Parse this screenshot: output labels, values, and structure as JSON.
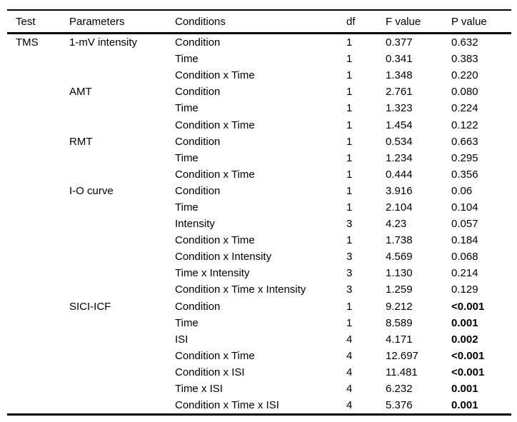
{
  "table": {
    "columns": [
      {
        "key": "test",
        "label": "Test"
      },
      {
        "key": "parameters",
        "label": "Parameters"
      },
      {
        "key": "conditions",
        "label": "Conditions"
      },
      {
        "key": "df",
        "label": "df"
      },
      {
        "key": "f",
        "label": "F value"
      },
      {
        "key": "p",
        "label": "P value"
      }
    ],
    "rows": [
      {
        "test": "TMS",
        "parameters": "1-mV intensity",
        "conditions": "Condition",
        "df": "1",
        "f": "0.377",
        "p": "0.632",
        "p_bold": false
      },
      {
        "test": "",
        "parameters": "",
        "conditions": "Time",
        "df": "1",
        "f": "0.341",
        "p": "0.383",
        "p_bold": false
      },
      {
        "test": "",
        "parameters": "",
        "conditions": "Condition x Time",
        "df": "1",
        "f": "1.348",
        "p": "0.220",
        "p_bold": false
      },
      {
        "test": "",
        "parameters": "AMT",
        "conditions": "Condition",
        "df": "1",
        "f": "2.761",
        "p": "0.080",
        "p_bold": false
      },
      {
        "test": "",
        "parameters": "",
        "conditions": "Time",
        "df": "1",
        "f": "1.323",
        "p": "0.224",
        "p_bold": false
      },
      {
        "test": "",
        "parameters": "",
        "conditions": "Condition x Time",
        "df": "1",
        "f": "1.454",
        "p": "0.122",
        "p_bold": false
      },
      {
        "test": "",
        "parameters": "RMT",
        "conditions": "Condition",
        "df": "1",
        "f": "0.534",
        "p": "0.663",
        "p_bold": false
      },
      {
        "test": "",
        "parameters": "",
        "conditions": "Time",
        "df": "1",
        "f": "1.234",
        "p": "0.295",
        "p_bold": false
      },
      {
        "test": "",
        "parameters": "",
        "conditions": "Condition x Time",
        "df": "1",
        "f": "0.444",
        "p": "0.356",
        "p_bold": false
      },
      {
        "test": "",
        "parameters": "I-O curve",
        "conditions": "Condition",
        "df": "1",
        "f": "3.916",
        "p": "0.06",
        "p_bold": false
      },
      {
        "test": "",
        "parameters": "",
        "conditions": "Time",
        "df": "1",
        "f": "2.104",
        "p": "0.104",
        "p_bold": false
      },
      {
        "test": "",
        "parameters": "",
        "conditions": "Intensity",
        "df": "3",
        "f": "4.23",
        "p": "0.057",
        "p_bold": false
      },
      {
        "test": "",
        "parameters": "",
        "conditions": "Condition x Time",
        "df": "1",
        "f": "1.738",
        "p": "0.184",
        "p_bold": false
      },
      {
        "test": "",
        "parameters": "",
        "conditions": "Condition x Intensity",
        "df": "3",
        "f": "4.569",
        "p": "0.068",
        "p_bold": false
      },
      {
        "test": "",
        "parameters": "",
        "conditions": "Time x Intensity",
        "df": "3",
        "f": "1.130",
        "p": "0.214",
        "p_bold": false
      },
      {
        "test": "",
        "parameters": "",
        "conditions": "Condition x Time x Intensity",
        "df": "3",
        "f": "1.259",
        "p": "0.129",
        "p_bold": false
      },
      {
        "test": "",
        "parameters": "SICI-ICF",
        "conditions": "Condition",
        "df": "1",
        "f": "9.212",
        "p": "<0.001",
        "p_bold": true
      },
      {
        "test": "",
        "parameters": "",
        "conditions": "Time",
        "df": "1",
        "f": "8.589",
        "p": "0.001",
        "p_bold": true
      },
      {
        "test": "",
        "parameters": "",
        "conditions": "ISI",
        "df": "4",
        "f": "4.171",
        "p": "0.002",
        "p_bold": true
      },
      {
        "test": "",
        "parameters": "",
        "conditions": "Condition x Time",
        "df": "4",
        "f": "12.697",
        "p": "<0.001",
        "p_bold": true
      },
      {
        "test": "",
        "parameters": "",
        "conditions": "Condition x ISI",
        "df": "4",
        "f": "11.481",
        "p": "<0.001",
        "p_bold": true
      },
      {
        "test": "",
        "parameters": "",
        "conditions": "Time x ISI",
        "df": "4",
        "f": "6.232",
        "p": "0.001",
        "p_bold": true
      },
      {
        "test": "",
        "parameters": "",
        "conditions": "Condition x Time x ISI",
        "df": "4",
        "f": "5.376",
        "p": "0.001",
        "p_bold": true
      }
    ]
  }
}
